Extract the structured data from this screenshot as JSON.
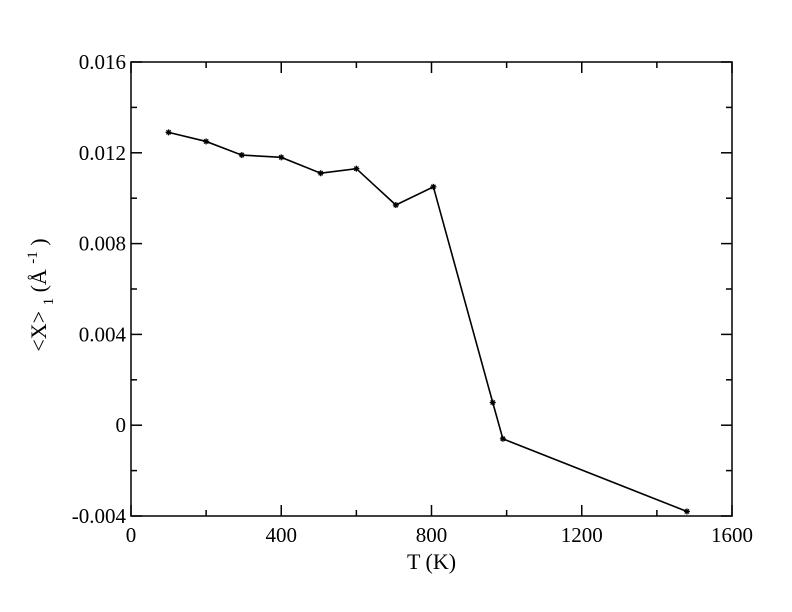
{
  "chart_data": {
    "type": "line",
    "title": "",
    "xlabel": "T (K)",
    "ylabel": {
      "base": "<X>",
      "subscript": "1",
      "unit_open": " (Å",
      "superscript": "-1",
      "unit_close": ")"
    },
    "xlim": [
      0,
      1600
    ],
    "ylim": [
      -0.004,
      0.016
    ],
    "x_major_ticks": [
      0,
      400,
      800,
      1200,
      1600
    ],
    "x_tick_labels": [
      "0",
      "400",
      "800",
      "1200",
      "1600"
    ],
    "x_minor_ticks": [
      200,
      600,
      1000,
      1400
    ],
    "y_major_ticks": [
      -0.004,
      0,
      0.004,
      0.008,
      0.012,
      0.016
    ],
    "y_tick_labels": [
      "-0.004",
      "0",
      "0.004",
      "0.008",
      "0.012",
      "0.016"
    ],
    "y_minor_ticks": [
      -0.002,
      0.002,
      0.006,
      0.01,
      0.014
    ],
    "grid": false,
    "legend": "none",
    "series": [
      {
        "x": [
          100,
          200,
          295,
          400,
          505,
          600,
          705,
          805,
          963,
          990,
          1480
        ],
        "y": [
          0.0129,
          0.0125,
          0.0119,
          0.0118,
          0.0111,
          0.0113,
          0.0097,
          0.0105,
          0.001,
          -0.0006,
          -0.0038
        ],
        "color": "#000000",
        "marker": "star"
      }
    ]
  }
}
